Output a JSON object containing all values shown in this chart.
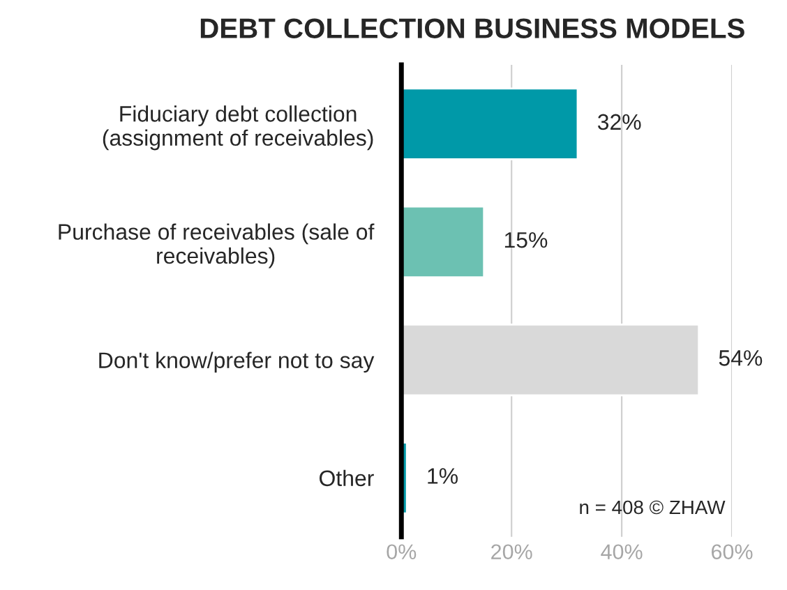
{
  "chart_data": {
    "type": "bar",
    "orientation": "horizontal",
    "title": "DEBT COLLECTION BUSINESS MODELS",
    "categories": [
      "Fiduciary debt collection\n(assignment of receivables)",
      "Purchase of receivables (sale of\nreceivables)",
      "Don't know/prefer not to say",
      "Other"
    ],
    "values": [
      32,
      15,
      54,
      1
    ],
    "colors": [
      "#0099a8",
      "#6cc1b2",
      "#d9d9d9",
      "#0099a8"
    ],
    "value_labels": [
      "32%",
      "15%",
      "54%",
      "1%"
    ],
    "xlim": [
      0,
      60
    ],
    "xticks": [
      {
        "value": 0,
        "label": "0%"
      },
      {
        "value": 20,
        "label": "20%"
      },
      {
        "value": 40,
        "label": "40%"
      },
      {
        "value": 60,
        "label": "60%"
      }
    ],
    "grid": "x",
    "annotations": [
      "n = 408 © ZHAW"
    ]
  }
}
